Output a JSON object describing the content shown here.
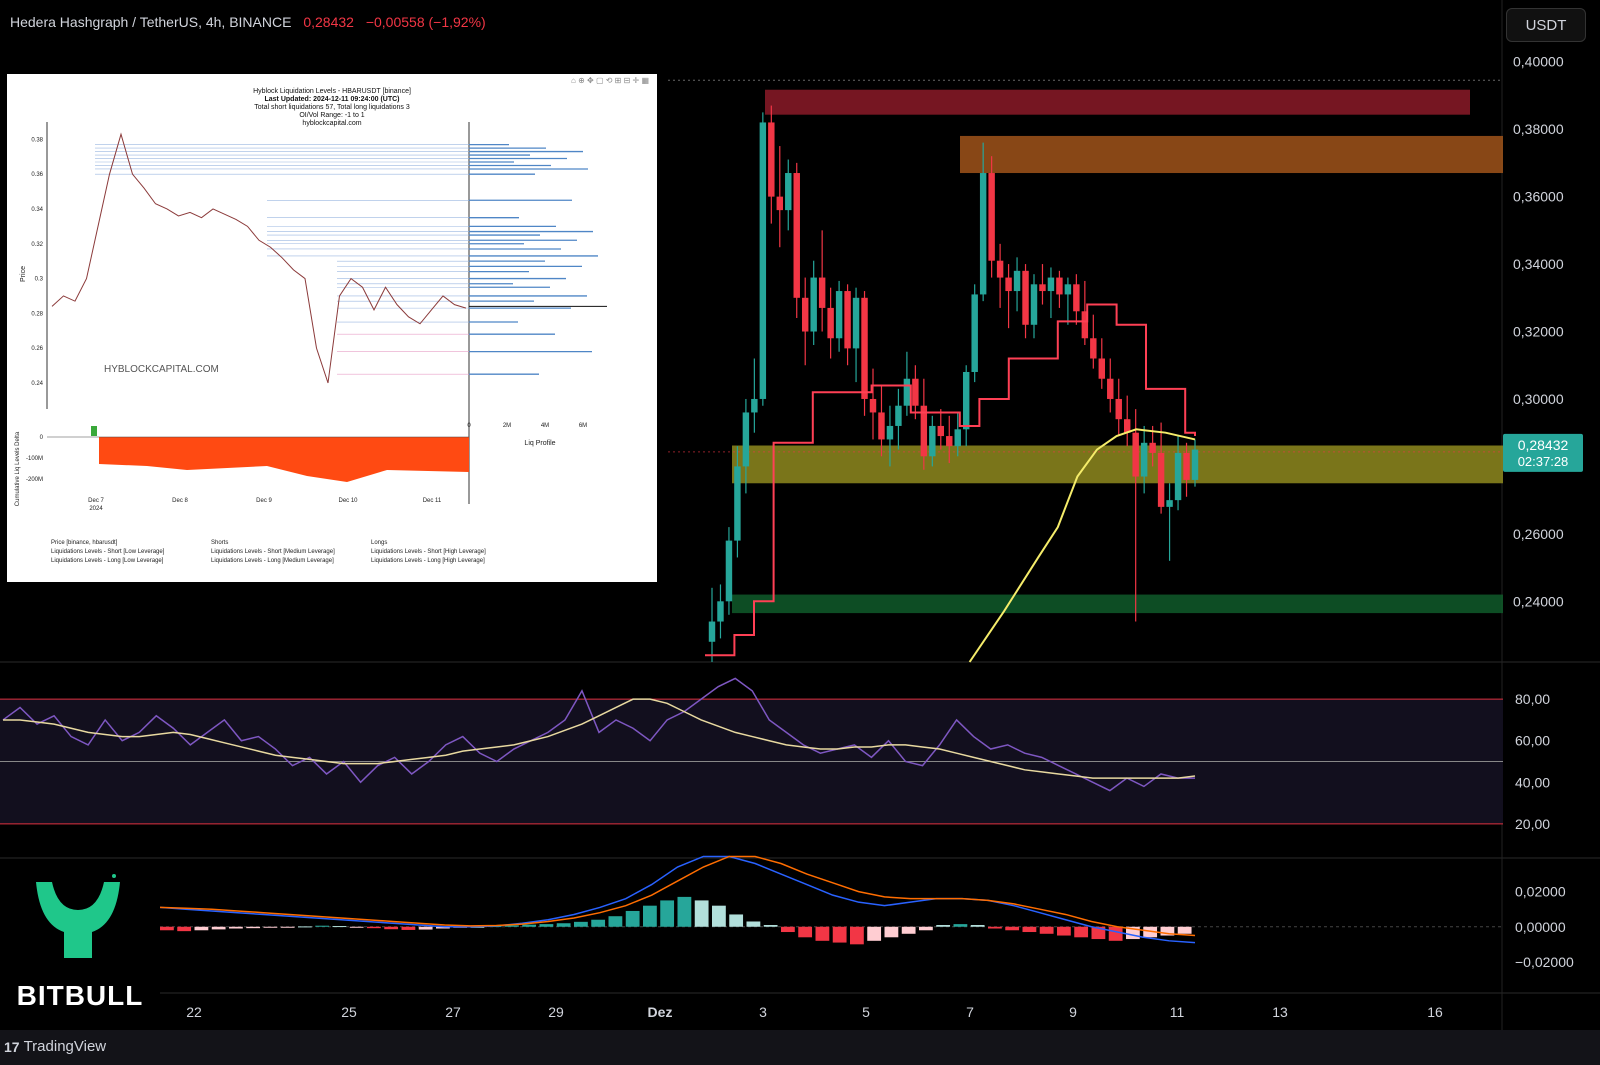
{
  "header": {
    "symbol": "Hedera Hashgraph / TetherUS, 4h, BINANCE",
    "price": "0,28432",
    "change": "−0,00558 (−1,92%)"
  },
  "currency_label": "USDT",
  "price_badge": {
    "price": "0,28432",
    "countdown": "02:37:28",
    "color": "#26a69a"
  },
  "colors": {
    "up": "#26a69a",
    "down": "#f23645",
    "ma_yellow": "#f5ec6a",
    "stop_red": "#ff4055",
    "rsi": "#7e57c2",
    "macd_line": "#2962ff",
    "signal_line": "#ff6d00"
  },
  "brand": {
    "name": "BITBULL",
    "icon": "bitbull-horns-icon",
    "color": "#1fc78a"
  },
  "footer": {
    "platform": "TradingView",
    "icon": "tradingview-icon"
  },
  "inset": {
    "title_lines": [
      "Hyblock Liquidation Levels - HBARUSDT [binance]",
      "Last Updated: 2024-12-11 09:24:00 (UTC)",
      "Total short liquidations 57, Total long liquidations 3",
      "OI/Vol Range: -1 to 1",
      "hyblockcapital.com"
    ],
    "watermark": "HYBLOCKCAPITAL.COM",
    "y_label": "Price",
    "y_ticks": [
      "0.38",
      "0.36",
      "0.34",
      "0.32",
      "0.3",
      "0.28",
      "0.26",
      "0.24"
    ],
    "x_ticks": [
      "Dec 7",
      "Dec 8",
      "Dec 9",
      "Dec 10",
      "Dec 11"
    ],
    "x_year": "2024",
    "profile_ticks": [
      "0",
      "2M",
      "4M",
      "6M"
    ],
    "profile_label": "Liq Profile",
    "delta_label": "Cumulative Liq Levels Delta",
    "delta_ticks": [
      "0",
      "-100M",
      "-200M"
    ],
    "legend": [
      "Price [binance, hbarusdt]",
      "Shorts",
      "Longs",
      "Liquidations Levels - Short [Low Leverage]",
      "Liquidations Levels - Short [Medium Leverage]",
      "Liquidations Levels - Short [High Leverage]",
      "Liquidations Levels - Long [Low Leverage]",
      "Liquidations Levels - Long [Medium Leverage]",
      "Liquidations Levels - Long [High Leverage]"
    ]
  },
  "chart_data": [
    {
      "type": "candlestick",
      "panel": "price",
      "y_axis_ticks": [
        "0,40000",
        "0,38000",
        "0,36000",
        "0,34000",
        "0,32000",
        "0,30000",
        "0,26000",
        "0,24000"
      ],
      "ylim": [
        0.222,
        0.402
      ],
      "x_axis_ticks": [
        "22",
        "25",
        "27",
        "29",
        "Dez",
        "3",
        "5",
        "7",
        "9",
        "11",
        "13",
        "16"
      ],
      "zones": [
        {
          "color": "#8b1a28",
          "y_low": 0.3843,
          "y_high": 0.3917,
          "x_start": "3",
          "x_end": "16"
        },
        {
          "color": "#a0531a",
          "y_low": 0.367,
          "y_high": 0.378,
          "x_start": "7",
          "x_end": "16"
        },
        {
          "color": "#8f8a1f",
          "y_low": 0.275,
          "y_high": 0.2862,
          "x_start": "2",
          "x_end": "16"
        },
        {
          "color": "#0f5a2a",
          "y_low": 0.2365,
          "y_high": 0.242,
          "x_start": "2",
          "x_end": "16"
        }
      ],
      "candles": [
        [
          0.228,
          0.244,
          0.222,
          0.234
        ],
        [
          0.234,
          0.245,
          0.229,
          0.24
        ],
        [
          0.24,
          0.262,
          0.236,
          0.258
        ],
        [
          0.258,
          0.286,
          0.253,
          0.28
        ],
        [
          0.28,
          0.3,
          0.272,
          0.296
        ],
        [
          0.296,
          0.312,
          0.29,
          0.3
        ],
        [
          0.3,
          0.385,
          0.298,
          0.382
        ],
        [
          0.382,
          0.387,
          0.352,
          0.36
        ],
        [
          0.36,
          0.375,
          0.345,
          0.356
        ],
        [
          0.356,
          0.371,
          0.35,
          0.367
        ],
        [
          0.367,
          0.37,
          0.324,
          0.33
        ],
        [
          0.33,
          0.336,
          0.31,
          0.32
        ],
        [
          0.32,
          0.341,
          0.316,
          0.336
        ],
        [
          0.336,
          0.35,
          0.32,
          0.327
        ],
        [
          0.327,
          0.333,
          0.312,
          0.318
        ],
        [
          0.318,
          0.335,
          0.314,
          0.332
        ],
        [
          0.332,
          0.334,
          0.31,
          0.315
        ],
        [
          0.315,
          0.333,
          0.305,
          0.33
        ],
        [
          0.33,
          0.332,
          0.295,
          0.3
        ],
        [
          0.3,
          0.309,
          0.288,
          0.296
        ],
        [
          0.296,
          0.304,
          0.283,
          0.288
        ],
        [
          0.288,
          0.298,
          0.28,
          0.292
        ],
        [
          0.292,
          0.303,
          0.285,
          0.298
        ],
        [
          0.298,
          0.314,
          0.295,
          0.306
        ],
        [
          0.306,
          0.31,
          0.294,
          0.298
        ],
        [
          0.298,
          0.306,
          0.279,
          0.283
        ],
        [
          0.283,
          0.295,
          0.28,
          0.292
        ],
        [
          0.292,
          0.297,
          0.285,
          0.289
        ],
        [
          0.289,
          0.295,
          0.281,
          0.286
        ],
        [
          0.286,
          0.296,
          0.283,
          0.291
        ],
        [
          0.291,
          0.31,
          0.286,
          0.308
        ],
        [
          0.308,
          0.334,
          0.305,
          0.331
        ],
        [
          0.331,
          0.376,
          0.329,
          0.367
        ],
        [
          0.367,
          0.372,
          0.336,
          0.341
        ],
        [
          0.341,
          0.346,
          0.327,
          0.336
        ],
        [
          0.336,
          0.34,
          0.321,
          0.332
        ],
        [
          0.332,
          0.342,
          0.326,
          0.338
        ],
        [
          0.338,
          0.34,
          0.318,
          0.322
        ],
        [
          0.322,
          0.337,
          0.318,
          0.334
        ],
        [
          0.334,
          0.34,
          0.328,
          0.332
        ],
        [
          0.332,
          0.339,
          0.324,
          0.336
        ],
        [
          0.336,
          0.338,
          0.327,
          0.331
        ],
        [
          0.331,
          0.336,
          0.322,
          0.334
        ],
        [
          0.334,
          0.337,
          0.322,
          0.326
        ],
        [
          0.326,
          0.335,
          0.316,
          0.318
        ],
        [
          0.318,
          0.325,
          0.309,
          0.312
        ],
        [
          0.312,
          0.318,
          0.303,
          0.306
        ],
        [
          0.306,
          0.312,
          0.296,
          0.3
        ],
        [
          0.3,
          0.306,
          0.289,
          0.294
        ],
        [
          0.294,
          0.301,
          0.286,
          0.29
        ],
        [
          0.29,
          0.297,
          0.234,
          0.277
        ],
        [
          0.277,
          0.292,
          0.272,
          0.287
        ],
        [
          0.287,
          0.292,
          0.28,
          0.284
        ],
        [
          0.284,
          0.293,
          0.266,
          0.268
        ],
        [
          0.268,
          0.275,
          0.252,
          0.27
        ],
        [
          0.27,
          0.289,
          0.267,
          0.284
        ],
        [
          0.284,
          0.287,
          0.271,
          0.276
        ],
        [
          0.276,
          0.288,
          0.274,
          0.285
        ]
      ],
      "series": [
        {
          "type": "moving-average",
          "color": "#f5ec6a",
          "points": [
            [
              0.54,
              0.222
            ],
            [
              0.61,
              0.237
            ],
            [
              0.68,
              0.253
            ],
            [
              0.72,
              0.262
            ],
            [
              0.76,
              0.277
            ],
            [
              0.8,
              0.285
            ],
            [
              0.84,
              0.289
            ],
            [
              0.88,
              0.291
            ],
            [
              0.94,
              0.29
            ],
            [
              1.0,
              0.288
            ]
          ]
        },
        {
          "type": "trailing-stop",
          "color": "#ff4055",
          "points": [
            [
              0.0,
              0.224
            ],
            [
              0.06,
              0.23
            ],
            [
              0.1,
              0.24
            ],
            [
              0.14,
              0.287
            ],
            [
              0.22,
              0.302
            ],
            [
              0.34,
              0.304
            ],
            [
              0.42,
              0.296
            ],
            [
              0.52,
              0.292
            ],
            [
              0.56,
              0.3
            ],
            [
              0.62,
              0.312
            ],
            [
              0.72,
              0.323
            ],
            [
              0.78,
              0.328
            ],
            [
              0.84,
              0.322
            ],
            [
              0.9,
              0.303
            ],
            [
              0.98,
              0.29
            ],
            [
              1.0,
              0.289
            ]
          ]
        }
      ]
    },
    {
      "type": "line",
      "panel": "rsi",
      "y_axis_ticks": [
        "80,00",
        "60,00",
        "40,00",
        "20,00"
      ],
      "ylim": [
        5,
        95
      ],
      "bands": [
        80,
        50,
        20
      ],
      "series": [
        {
          "name": "",
          "color": "#7e57c2",
          "values": [
            70,
            76,
            68,
            72,
            62,
            58,
            70,
            60,
            64,
            72,
            66,
            58,
            64,
            70,
            60,
            62,
            56,
            48,
            52,
            44,
            50,
            40,
            48,
            52,
            44,
            50,
            58,
            62,
            54,
            50,
            56,
            60,
            64,
            70,
            84,
            64,
            70,
            66,
            60,
            70,
            74,
            80,
            86,
            90,
            84,
            70,
            64,
            58,
            54,
            56,
            58,
            52,
            60,
            50,
            48,
            58,
            70,
            62,
            56,
            58,
            54,
            52,
            48,
            44,
            40,
            36,
            42,
            38,
            44,
            42,
            42
          ]
        },
        {
          "name": "",
          "color": "#e8d9a0",
          "values": [
            70,
            70,
            69,
            68,
            66,
            64,
            63,
            62,
            62,
            63,
            64,
            63,
            61,
            59,
            57,
            55,
            53,
            52,
            51,
            50,
            49,
            49,
            49,
            50,
            51,
            52,
            53,
            55,
            56,
            57,
            58,
            60,
            62,
            65,
            68,
            72,
            76,
            80,
            80,
            78,
            74,
            70,
            67,
            64,
            62,
            60,
            58,
            57,
            56,
            56,
            57,
            57,
            58,
            58,
            57,
            56,
            54,
            52,
            50,
            48,
            46,
            45,
            44,
            43,
            42,
            42,
            42,
            42,
            42,
            42,
            43
          ]
        }
      ]
    },
    {
      "type": "bar",
      "panel": "macd",
      "y_axis_ticks": [
        "0,02000",
        "0,00000",
        "−0,02000"
      ],
      "ylim": [
        -0.036,
        0.038
      ],
      "histogram": [
        -0.002,
        -0.0025,
        -0.002,
        -0.0015,
        -0.001,
        -0.0008,
        -0.0005,
        -0.0003,
        0.0002,
        0.0006,
        0.0004,
        -0.0003,
        -0.0008,
        -0.0014,
        -0.0018,
        -0.0016,
        -0.001,
        -0.0005,
        0.0,
        0.0004,
        0.0008,
        0.0012,
        0.0015,
        0.002,
        0.0028,
        0.004,
        0.006,
        0.009,
        0.012,
        0.015,
        0.017,
        0.015,
        0.012,
        0.007,
        0.003,
        0.001,
        -0.003,
        -0.006,
        -0.008,
        -0.009,
        -0.01,
        -0.008,
        -0.006,
        -0.004,
        -0.002,
        0.001,
        0.0015,
        0.001,
        -0.001,
        -0.002,
        -0.003,
        -0.004,
        -0.005,
        -0.006,
        -0.007,
        -0.008,
        -0.007,
        -0.006,
        -0.005,
        -0.004
      ],
      "series": [
        {
          "name": "",
          "color": "#2962ff",
          "values": [
            0.011,
            0.01,
            0.009,
            0.008,
            0.007,
            0.006,
            0.005,
            0.004,
            0.003,
            0.002,
            0.001,
            0.0,
            0.0,
            0.0005,
            0.002,
            0.004,
            0.007,
            0.011,
            0.016,
            0.024,
            0.034,
            0.04,
            0.04,
            0.036,
            0.03,
            0.024,
            0.018,
            0.014,
            0.012,
            0.014,
            0.016,
            0.016,
            0.015,
            0.012,
            0.008,
            0.004,
            0.0,
            -0.003,
            -0.006,
            -0.008,
            -0.009
          ]
        },
        {
          "name": "",
          "color": "#ff6d00",
          "values": [
            0.011,
            0.0105,
            0.01,
            0.009,
            0.008,
            0.007,
            0.006,
            0.005,
            0.004,
            0.003,
            0.002,
            0.001,
            0.0005,
            0.0007,
            0.0015,
            0.003,
            0.005,
            0.008,
            0.012,
            0.018,
            0.026,
            0.034,
            0.04,
            0.04,
            0.036,
            0.03,
            0.025,
            0.02,
            0.017,
            0.016,
            0.016,
            0.016,
            0.015,
            0.013,
            0.01,
            0.007,
            0.003,
            0.0,
            -0.002,
            -0.004,
            -0.005
          ]
        }
      ]
    }
  ]
}
